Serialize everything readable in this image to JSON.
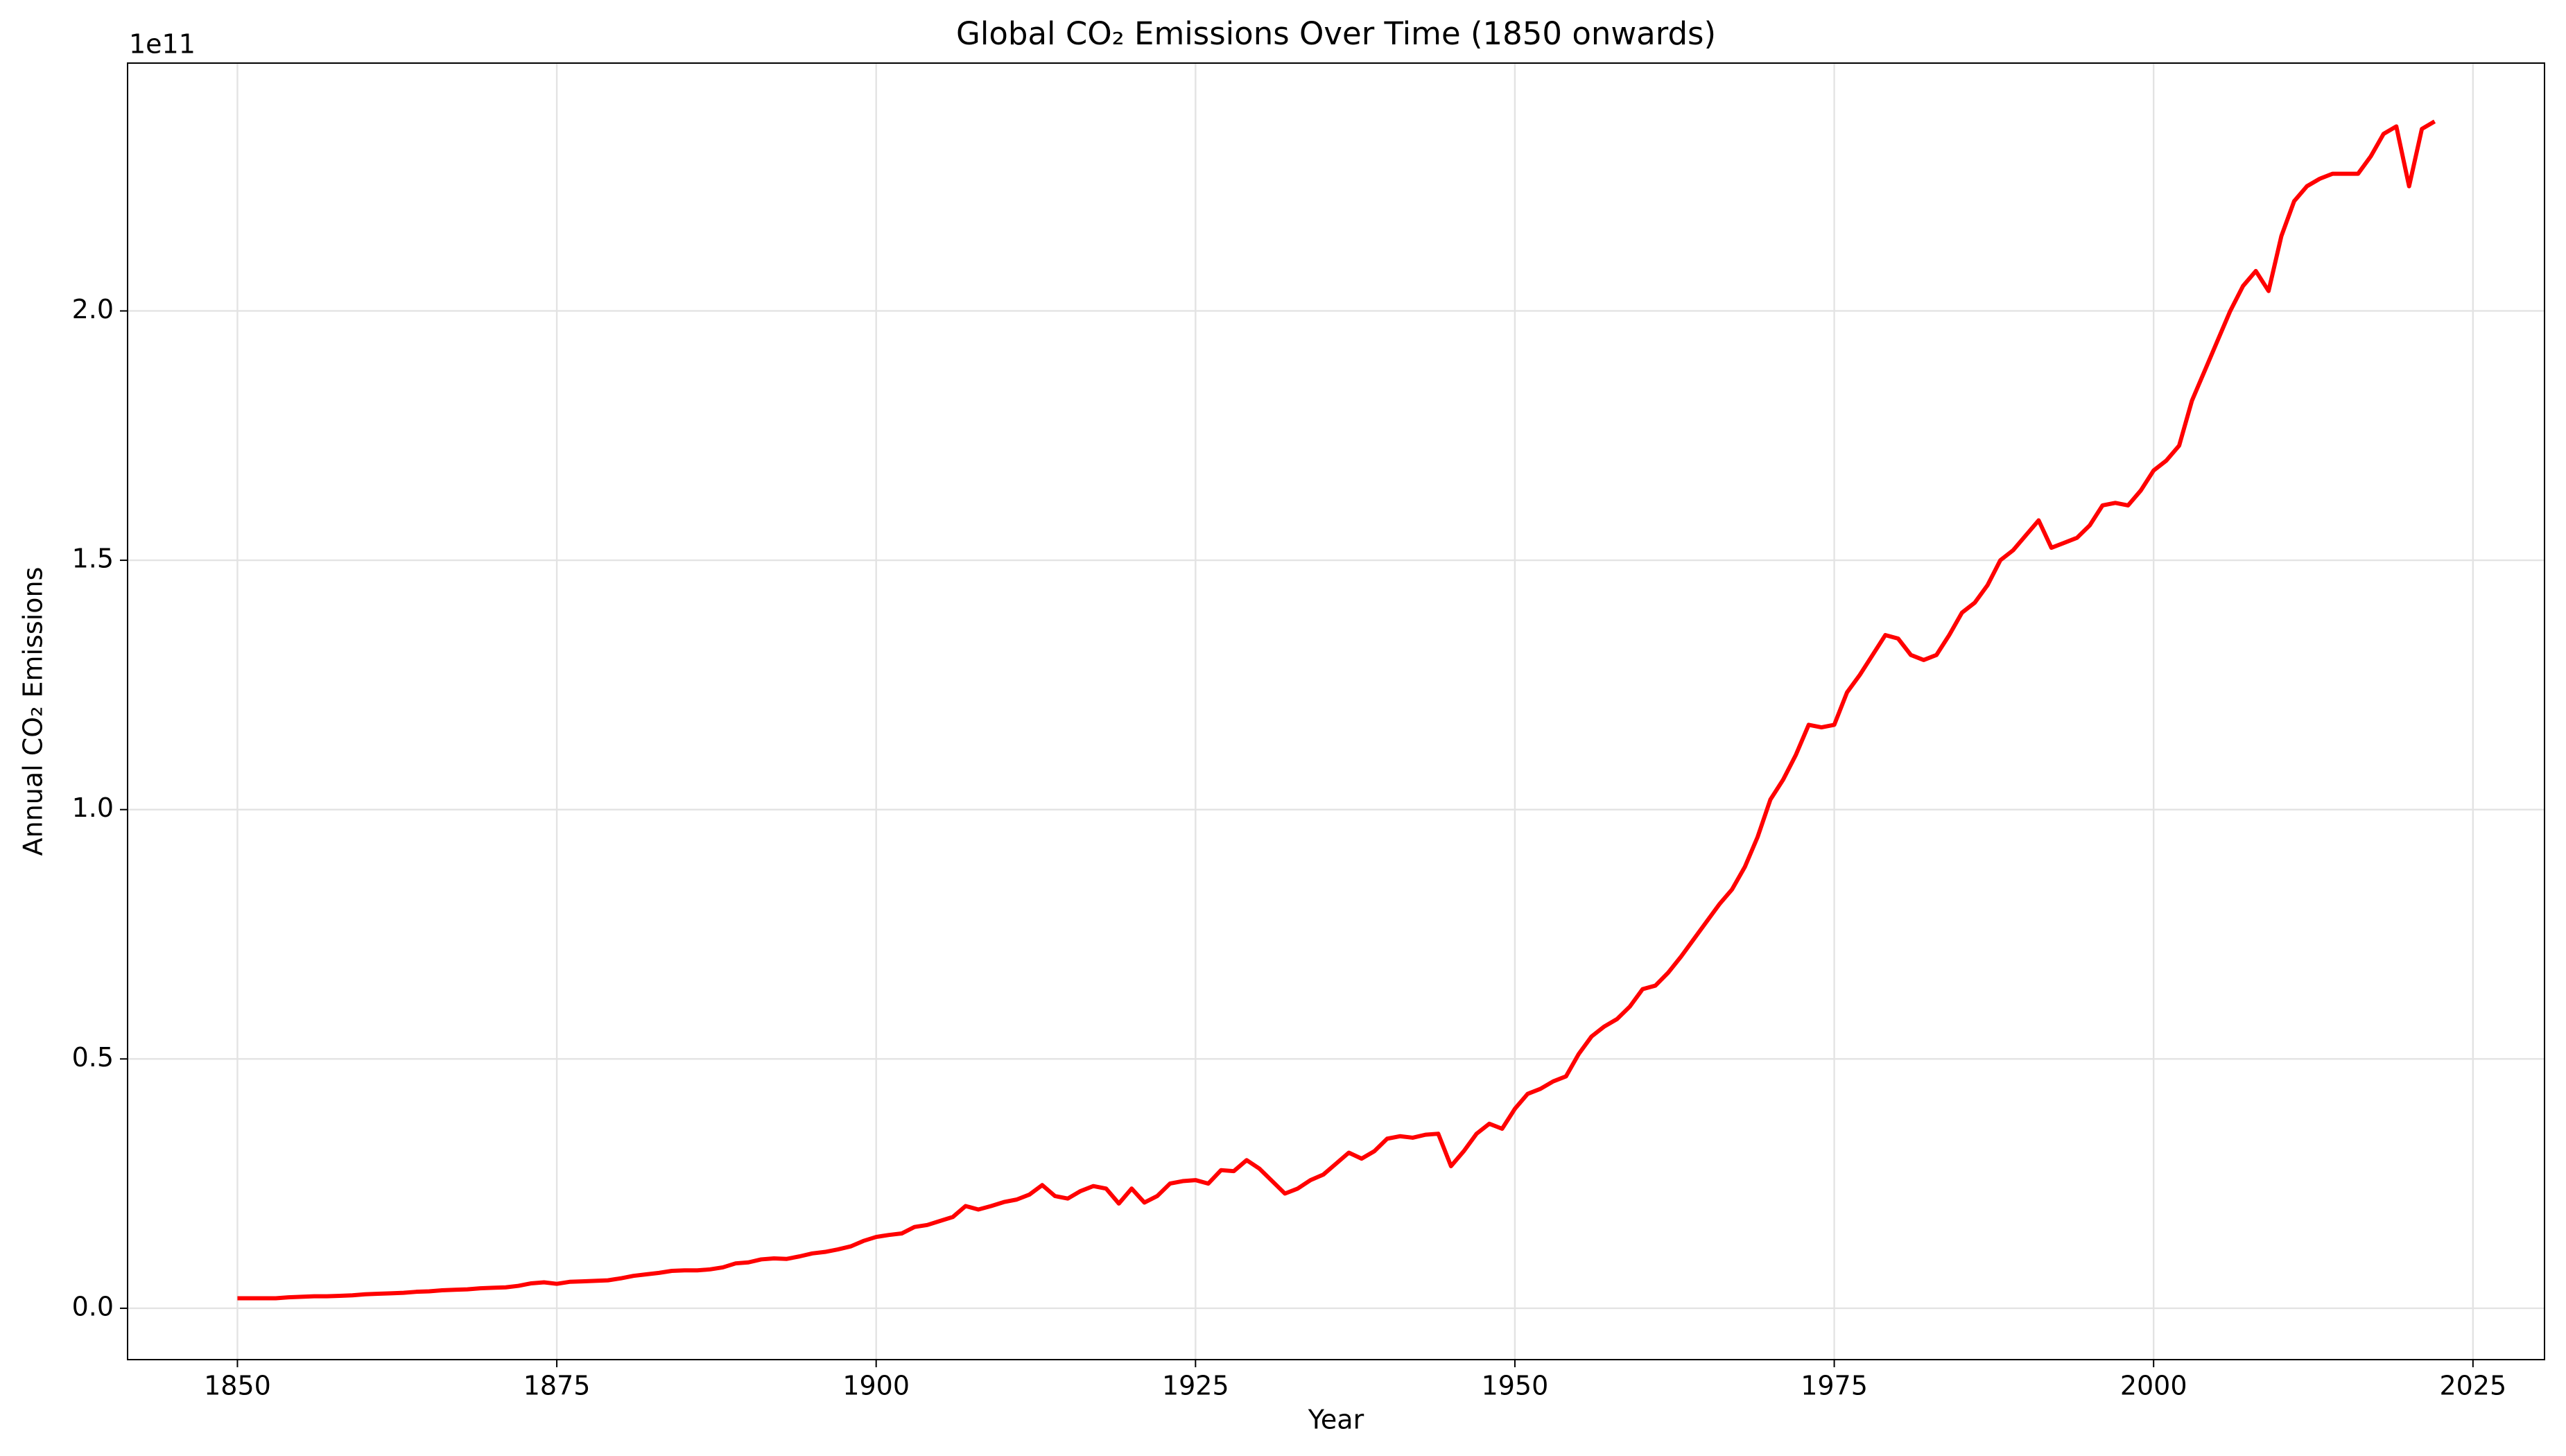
{
  "chart_data": {
    "type": "line",
    "title": "Global CO₂ Emissions Over Time (1850 onwards)",
    "x_label": "Year",
    "y_label": "Annual CO₂ Emissions",
    "y_offset_label": "1e11",
    "color": "#ff0000",
    "grid": true,
    "xlim": [
      1841.4,
      2030.6
    ],
    "ylim": [
      -0.103,
      2.497
    ],
    "xticks": [
      1850,
      1875,
      1900,
      1925,
      1950,
      1975,
      2000,
      2025
    ],
    "yticks": [
      {
        "value": 0,
        "label": "0.0"
      },
      0.5,
      {
        "value": 1,
        "label": "1.0"
      },
      1.5,
      {
        "value": 2,
        "label": "2.0"
      }
    ],
    "x": [
      1850,
      1851,
      1852,
      1853,
      1854,
      1855,
      1856,
      1857,
      1858,
      1859,
      1860,
      1861,
      1862,
      1863,
      1864,
      1865,
      1866,
      1867,
      1868,
      1869,
      1870,
      1871,
      1872,
      1873,
      1874,
      1875,
      1876,
      1877,
      1878,
      1879,
      1880,
      1881,
      1882,
      1883,
      1884,
      1885,
      1886,
      1887,
      1888,
      1889,
      1890,
      1891,
      1892,
      1893,
      1894,
      1895,
      1896,
      1897,
      1898,
      1899,
      1900,
      1901,
      1902,
      1903,
      1904,
      1905,
      1906,
      1907,
      1908,
      1909,
      1910,
      1911,
      1912,
      1913,
      1914,
      1915,
      1916,
      1917,
      1918,
      1919,
      1920,
      1921,
      1922,
      1923,
      1924,
      1925,
      1926,
      1927,
      1928,
      1929,
      1930,
      1931,
      1932,
      1933,
      1934,
      1935,
      1936,
      1937,
      1938,
      1939,
      1940,
      1941,
      1942,
      1943,
      1944,
      1945,
      1946,
      1947,
      1948,
      1949,
      1950,
      1951,
      1952,
      1953,
      1954,
      1955,
      1956,
      1957,
      1958,
      1959,
      1960,
      1961,
      1962,
      1963,
      1964,
      1965,
      1966,
      1967,
      1968,
      1969,
      1970,
      1971,
      1972,
      1973,
      1974,
      1975,
      1976,
      1977,
      1978,
      1979,
      1980,
      1981,
      1982,
      1983,
      1984,
      1985,
      1986,
      1987,
      1988,
      1989,
      1990,
      1991,
      1992,
      1993,
      1994,
      1995,
      1996,
      1997,
      1998,
      1999,
      2000,
      2001,
      2002,
      2003,
      2004,
      2005,
      2006,
      2007,
      2008,
      2009,
      2010,
      2011,
      2012,
      2013,
      2014,
      2015,
      2016,
      2017,
      2018,
      2019,
      2020,
      2021,
      2022
    ],
    "values": [
      0.02,
      0.02,
      0.02,
      0.02,
      0.022,
      0.023,
      0.024,
      0.024,
      0.025,
      0.026,
      0.028,
      0.029,
      0.03,
      0.031,
      0.033,
      0.034,
      0.036,
      0.037,
      0.038,
      0.04,
      0.041,
      0.042,
      0.045,
      0.05,
      0.052,
      0.049,
      0.053,
      0.054,
      0.055,
      0.056,
      0.06,
      0.065,
      0.068,
      0.071,
      0.075,
      0.076,
      0.076,
      0.078,
      0.082,
      0.09,
      0.092,
      0.098,
      0.1,
      0.099,
      0.104,
      0.11,
      0.113,
      0.118,
      0.124,
      0.135,
      0.143,
      0.147,
      0.15,
      0.163,
      0.167,
      0.175,
      0.183,
      0.205,
      0.198,
      0.205,
      0.213,
      0.218,
      0.228,
      0.247,
      0.225,
      0.22,
      0.235,
      0.245,
      0.24,
      0.21,
      0.24,
      0.212,
      0.225,
      0.25,
      0.255,
      0.257,
      0.25,
      0.277,
      0.275,
      0.297,
      0.28,
      0.255,
      0.23,
      0.24,
      0.257,
      0.268,
      0.29,
      0.312,
      0.3,
      0.315,
      0.34,
      0.345,
      0.342,
      0.348,
      0.35,
      0.285,
      0.315,
      0.35,
      0.37,
      0.36,
      0.4,
      0.43,
      0.44,
      0.455,
      0.465,
      0.51,
      0.545,
      0.565,
      0.58,
      0.605,
      0.64,
      0.647,
      0.673,
      0.705,
      0.74,
      0.775,
      0.81,
      0.84,
      0.885,
      0.945,
      1.02,
      1.06,
      1.11,
      1.17,
      1.165,
      1.17,
      1.235,
      1.27,
      1.31,
      1.35,
      1.343,
      1.31,
      1.3,
      1.31,
      1.35,
      1.395,
      1.415,
      1.45,
      1.5,
      1.52,
      1.55,
      1.58,
      1.525,
      1.535,
      1.545,
      1.57,
      1.61,
      1.615,
      1.61,
      1.64,
      1.68,
      1.7,
      1.73,
      1.82,
      1.88,
      1.94,
      2.0,
      2.05,
      2.08,
      2.04,
      2.15,
      2.22,
      2.25,
      2.265,
      2.275,
      2.275,
      2.275,
      2.31,
      2.355,
      2.37,
      2.25,
      2.365,
      2.38
    ]
  }
}
